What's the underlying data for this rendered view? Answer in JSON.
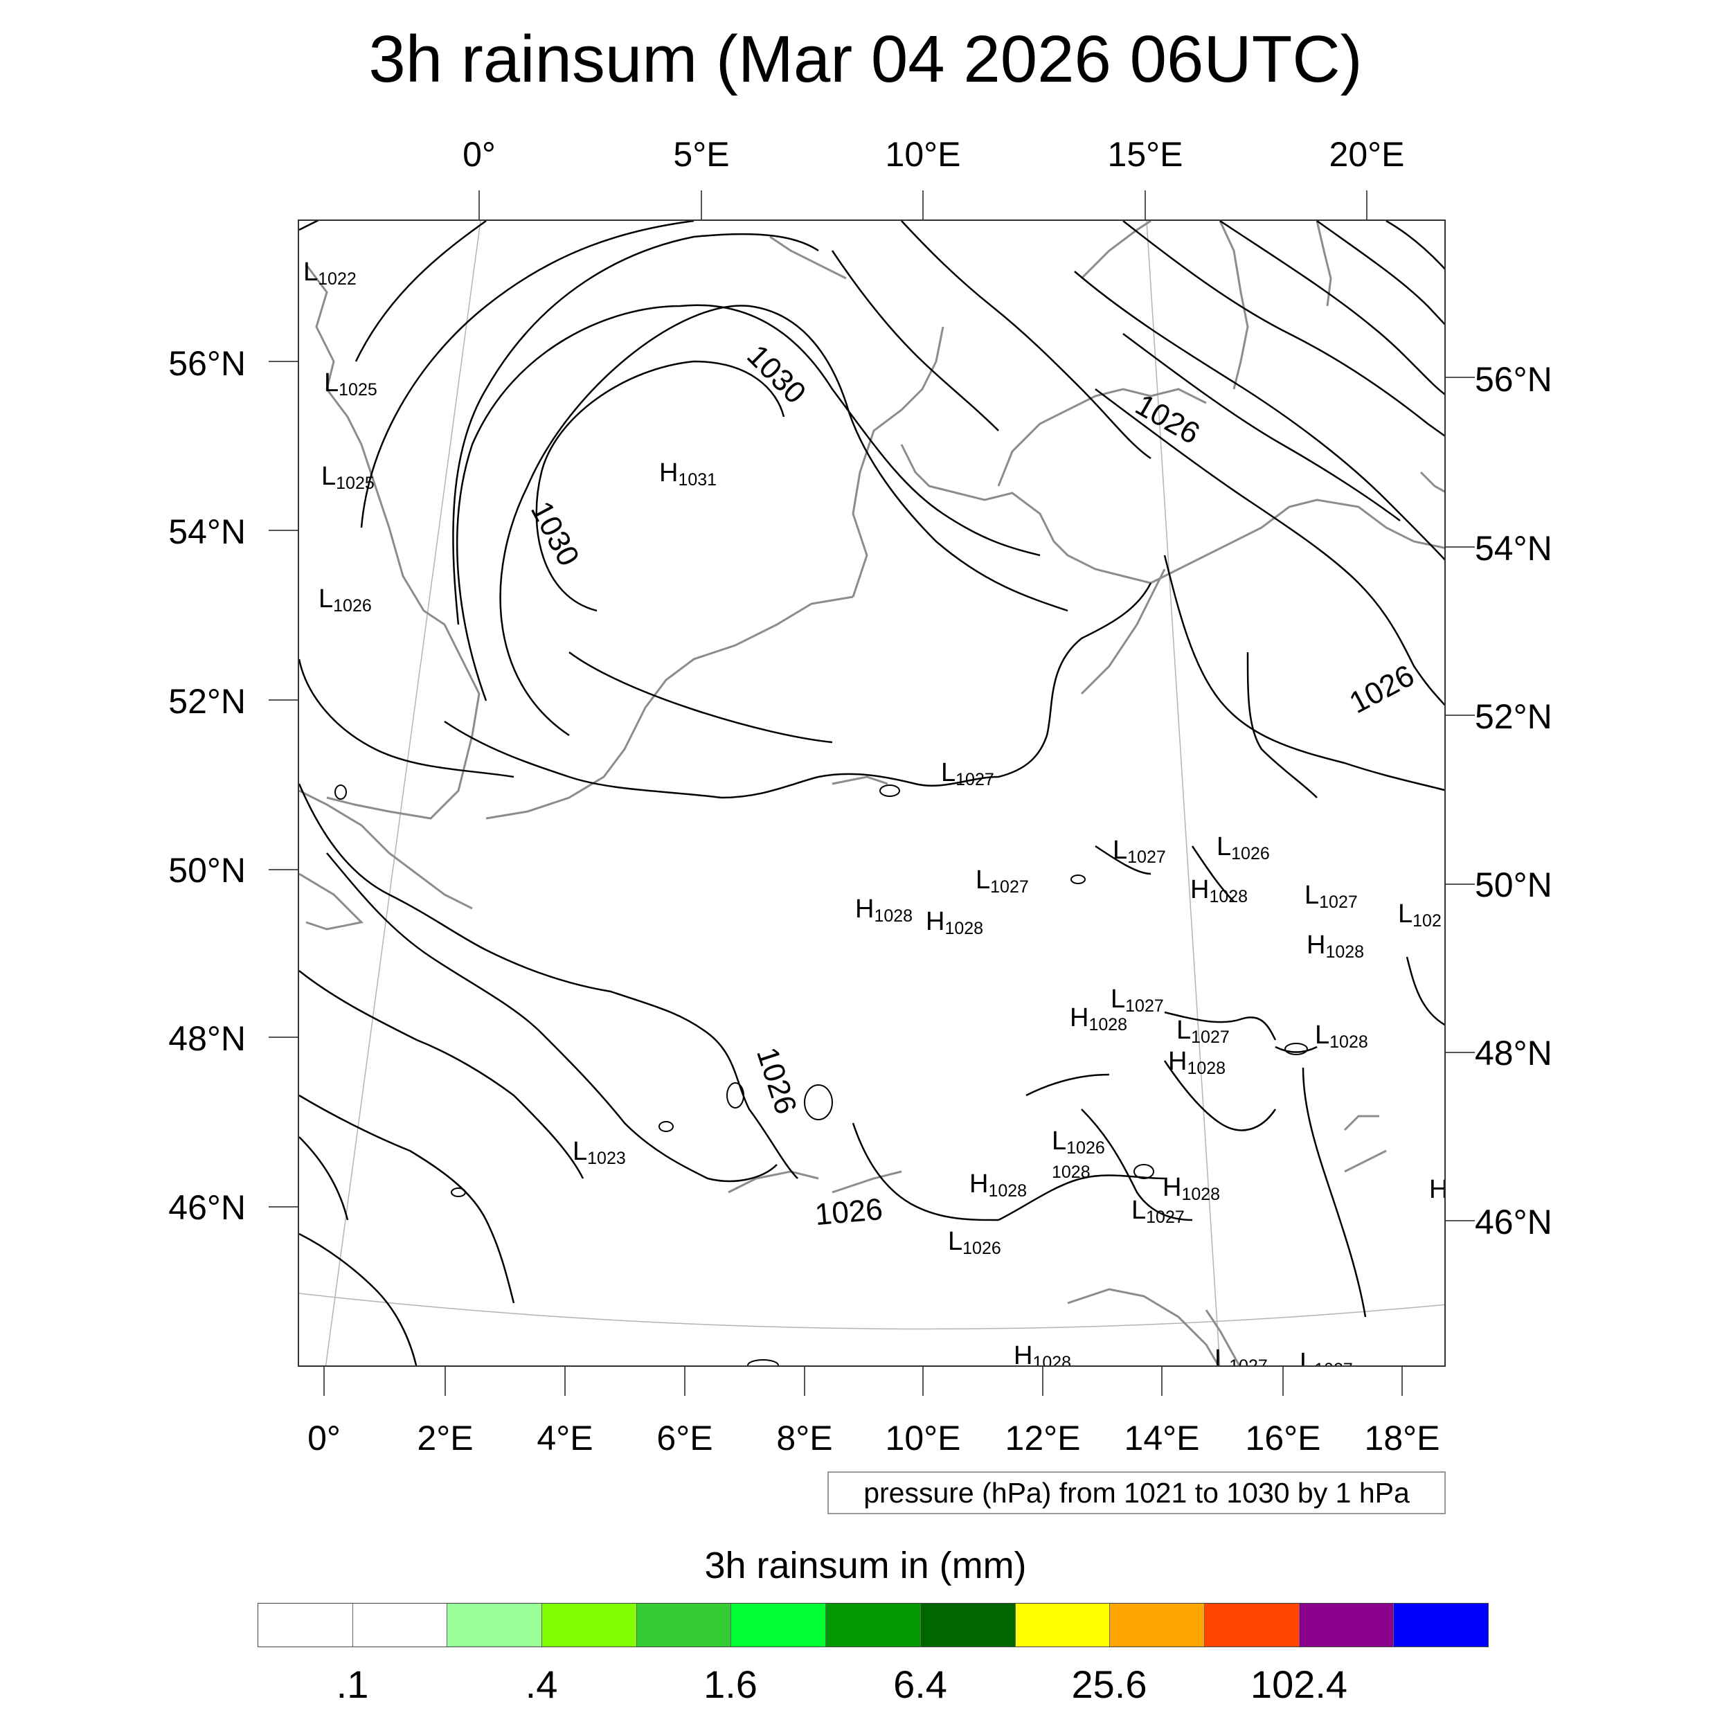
{
  "title": "3h rainsum (Mar 04 2026 06UTC)",
  "axes": {
    "top_lon_labels": [
      "0°",
      "5°E",
      "10°E",
      "15°E",
      "20°E"
    ],
    "bottom_lon_labels": [
      "0°",
      "2°E",
      "4°E",
      "6°E",
      "8°E",
      "10°E",
      "12°E",
      "14°E",
      "16°E",
      "18°E"
    ],
    "left_lat_labels": [
      "56°N",
      "54°N",
      "52°N",
      "50°N",
      "48°N",
      "46°N"
    ],
    "right_lat_labels": [
      "56°N",
      "54°N",
      "52°N",
      "50°N",
      "48°N",
      "46°N"
    ]
  },
  "map": {
    "projection": "conic, rotated lon/lat lines",
    "coastline_color": "#8c8c8c",
    "isobar_color": "#000000",
    "isobar_labels": [
      "1030",
      "1030",
      "1026",
      "1026",
      "1026",
      "1026"
    ],
    "pressure_centers": [
      {
        "type": "L",
        "value": "1022"
      },
      {
        "type": "L",
        "value": "1025"
      },
      {
        "type": "L",
        "value": "1025"
      },
      {
        "type": "L",
        "value": "1026"
      },
      {
        "type": "H",
        "value": "1031"
      },
      {
        "type": "L",
        "value": "1027"
      },
      {
        "type": "L",
        "value": "1027"
      },
      {
        "type": "L",
        "value": "1026"
      },
      {
        "type": "L",
        "value": "1027"
      },
      {
        "type": "H",
        "value": "1028"
      },
      {
        "type": "H",
        "value": "1028"
      },
      {
        "type": "H",
        "value": "1028"
      },
      {
        "type": "L",
        "value": "1027"
      },
      {
        "type": "L",
        "value": "102"
      },
      {
        "type": "H",
        "value": "1028"
      },
      {
        "type": "L",
        "value": "1027"
      },
      {
        "type": "H",
        "value": "1028"
      },
      {
        "type": "L",
        "value": "1027"
      },
      {
        "type": "L",
        "value": "1028"
      },
      {
        "type": "H",
        "value": "1028"
      },
      {
        "type": "L",
        "value": "1023"
      },
      {
        "type": "L",
        "value": "1026"
      },
      {
        "type": "L",
        "value": "1028"
      },
      {
        "type": "H",
        "value": "1028"
      },
      {
        "type": "H",
        "value": "1028"
      },
      {
        "type": "L",
        "value": "1027"
      },
      {
        "type": "L",
        "value": "1026"
      },
      {
        "type": "H",
        "value": ""
      },
      {
        "type": "H",
        "value": "1028"
      },
      {
        "type": "L",
        "value": "1027"
      },
      {
        "type": "L",
        "value": "1027"
      }
    ]
  },
  "contour_info": "pressure (hPa) from 1021 to 1030 by 1 hPa",
  "colorbar": {
    "title": "3h rainsum in (mm)",
    "colors": [
      "#ffffff",
      "#ffffff",
      "#99ff99",
      "#80ff00",
      "#33cc33",
      "#00ff33",
      "#009900",
      "#006600",
      "#ffff00",
      "#ffa500",
      "#ff4500",
      "#8b008b",
      "#0000ff"
    ],
    "labels": [
      ".1",
      ".4",
      "1.6",
      "6.4",
      "25.6",
      "102.4"
    ]
  }
}
